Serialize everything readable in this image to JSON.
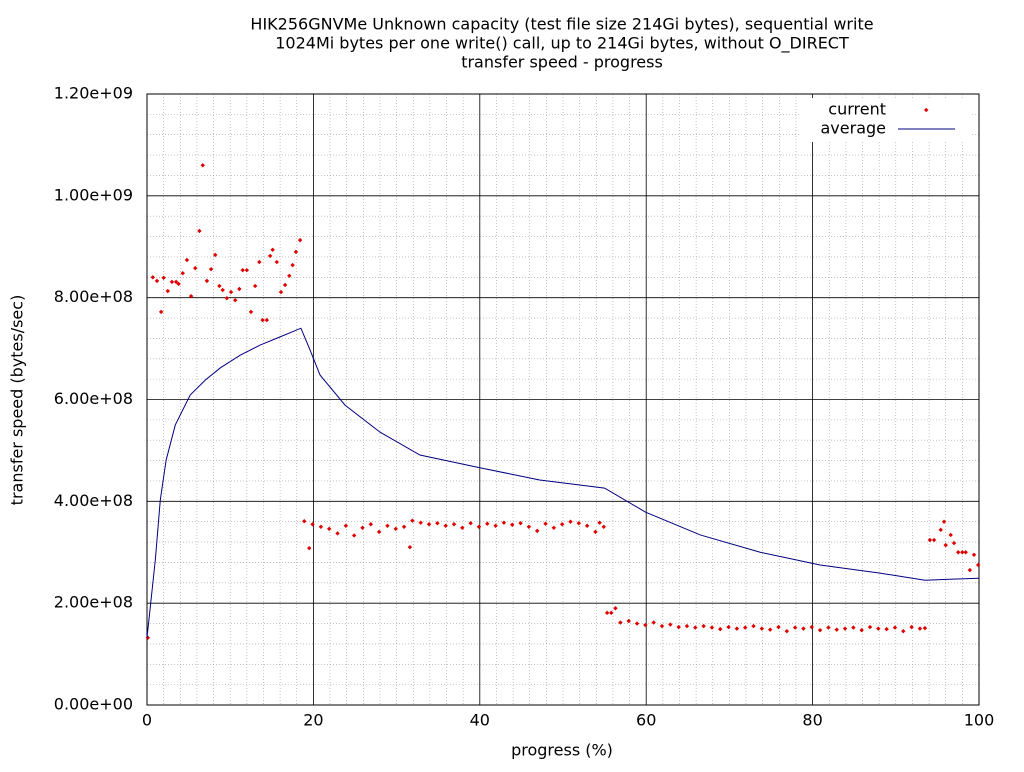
{
  "chart_data": {
    "type": "scatter",
    "title": [
      "HIK256GNVMe Unknown capacity (test file size 214Gi bytes), sequential write",
      "1024Mi bytes per one write() call, up to 214Gi bytes, without O_DIRECT",
      "transfer speed - progress"
    ],
    "x_label": "progress (%)",
    "y_label": "transfer speed (bytes/sec)",
    "xlim": [
      0,
      100
    ],
    "xticks": [
      0,
      20,
      40,
      60,
      80,
      100
    ],
    "ylim": [
      0,
      1200000000
    ],
    "yticks": [
      {
        "value": 0,
        "label": "0.00e+00"
      },
      {
        "value": 200000000,
        "label": "2.00e+08"
      },
      {
        "value": 400000000,
        "label": "4.00e+08"
      },
      {
        "value": 600000000,
        "label": "6.00e+08"
      },
      {
        "value": 800000000,
        "label": "8.00e+08"
      },
      {
        "value": 1000000000,
        "label": "1.00e+09"
      },
      {
        "value": 1200000000,
        "label": "1.20e+09"
      }
    ],
    "grid": true,
    "minor_grid": [
      10,
      5
    ],
    "legend": "top-right",
    "series": [
      {
        "name": "current",
        "color": "#e00000",
        "style": "points",
        "x": [
          0.1,
          0.7,
          1.2,
          1.7,
          2.0,
          2.5,
          3.0,
          3.5,
          3.8,
          4.3,
          4.8,
          5.3,
          5.8,
          6.3,
          6.7,
          7.2,
          7.7,
          8.2,
          8.7,
          9.1,
          9.6,
          10.1,
          10.6,
          11.1,
          11.5,
          12.0,
          12.5,
          13.0,
          13.5,
          13.9,
          14.4,
          14.8,
          15.1,
          15.6,
          16.1,
          16.6,
          17.1,
          17.5,
          17.9,
          18.4,
          18.9,
          19.5,
          19.9,
          20.9,
          21.9,
          22.9,
          23.9,
          24.9,
          25.9,
          26.9,
          27.9,
          28.9,
          29.9,
          30.9,
          31.6,
          31.9,
          32.9,
          33.9,
          34.9,
          35.9,
          36.9,
          37.9,
          38.9,
          39.9,
          40.9,
          41.9,
          42.9,
          43.9,
          44.9,
          45.9,
          46.9,
          47.9,
          48.9,
          49.9,
          50.9,
          51.9,
          52.9,
          53.9,
          54.4,
          54.9,
          55.3,
          55.8,
          56.3,
          56.9,
          57.9,
          58.9,
          59.9,
          60.9,
          61.9,
          62.9,
          63.9,
          64.9,
          65.9,
          66.9,
          67.9,
          68.9,
          69.9,
          70.9,
          71.9,
          72.9,
          73.9,
          74.9,
          75.9,
          76.9,
          77.9,
          78.9,
          79.9,
          80.9,
          81.9,
          82.9,
          83.9,
          84.9,
          85.9,
          86.9,
          87.9,
          88.9,
          89.9,
          90.9,
          91.9,
          92.9,
          93.5,
          94.1,
          94.6,
          95.4,
          95.8,
          96.0,
          96.6,
          97.0,
          97.5,
          98.0,
          98.4,
          98.9,
          99.4,
          99.9
        ],
        "values": [
          132000000,
          840000000,
          833000000,
          772000000,
          839000000,
          813000000,
          831000000,
          831000000,
          827000000,
          848000000,
          874000000,
          803000000,
          858000000,
          931000000,
          1060000000,
          833000000,
          856000000,
          884000000,
          823000000,
          815000000,
          799000000,
          811000000,
          795000000,
          817000000,
          854000000,
          854000000,
          772000000,
          823000000,
          870000000,
          756000000,
          756000000,
          882000000,
          894000000,
          870000000,
          811000000,
          825000000,
          843000000,
          864000000,
          890000000,
          913000000,
          361000000,
          308000000,
          355000000,
          350000000,
          346000000,
          337000000,
          352000000,
          333000000,
          348000000,
          355000000,
          340000000,
          352000000,
          346000000,
          350000000,
          310000000,
          362000000,
          358000000,
          355000000,
          357000000,
          352000000,
          355000000,
          348000000,
          357000000,
          350000000,
          356000000,
          352000000,
          358000000,
          354000000,
          357000000,
          350000000,
          342000000,
          356000000,
          348000000,
          355000000,
          360000000,
          357000000,
          352000000,
          340000000,
          358000000,
          350000000,
          181000000,
          181000000,
          190000000,
          162000000,
          165000000,
          160000000,
          157000000,
          162000000,
          155000000,
          158000000,
          153000000,
          155000000,
          152000000,
          155000000,
          152000000,
          149000000,
          153000000,
          150000000,
          152000000,
          155000000,
          150000000,
          148000000,
          153000000,
          145000000,
          152000000,
          150000000,
          153000000,
          147000000,
          152000000,
          148000000,
          150000000,
          152000000,
          147000000,
          153000000,
          150000000,
          149000000,
          152000000,
          145000000,
          153000000,
          150000000,
          151000000,
          324000000,
          324000000,
          344000000,
          360000000,
          314000000,
          334000000,
          318000000,
          300000000,
          300000000,
          300000000,
          265000000,
          295000000,
          275000000
        ]
      },
      {
        "name": "average",
        "color": "#000080",
        "style": "line",
        "x": [
          0,
          1.0,
          1.6,
          2.3,
          3.4,
          5.2,
          7.0,
          8.8,
          11.2,
          13.6,
          16.0,
          18.5,
          19.6,
          20.8,
          23.8,
          28.0,
          32.8,
          40.0,
          47.2,
          55.0,
          59.9,
          66.5,
          73.7,
          80.9,
          88.1,
          93.5,
          96.5,
          100
        ],
        "values": [
          132000000,
          285000000,
          403000000,
          481000000,
          550000000,
          609000000,
          638000000,
          662000000,
          687000000,
          707000000,
          723000000,
          740000000,
          697000000,
          648000000,
          589000000,
          536000000,
          491000000,
          466000000,
          442000000,
          426000000,
          379000000,
          334000000,
          300000000,
          275000000,
          259000000,
          245000000,
          247000000,
          249000000
        ]
      }
    ]
  }
}
